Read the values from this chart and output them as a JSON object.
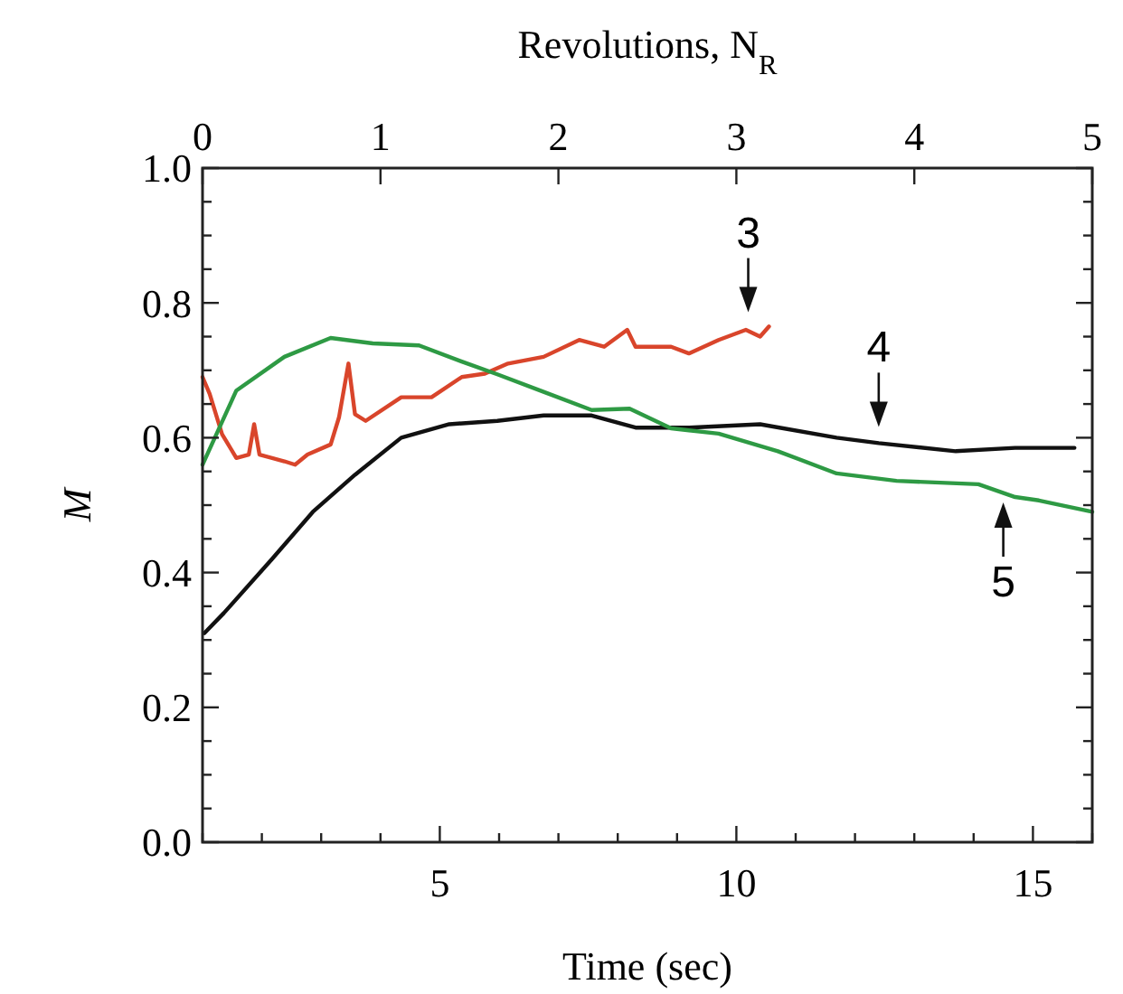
{
  "chart_data": {
    "type": "line",
    "xlabel": "Time (sec)",
    "ylabel": "M",
    "x2label": "Revolutions, N$_{R}$",
    "xlim": [
      1,
      16
    ],
    "xticks": [
      {
        "value": 1,
        "label": null
      },
      {
        "value": 2,
        "label": null
      },
      {
        "value": 3,
        "label": null
      },
      {
        "value": 4,
        "label": null
      },
      5,
      {
        "value": 6,
        "label": null
      },
      {
        "value": 7,
        "label": null
      },
      {
        "value": 8,
        "label": null
      },
      {
        "value": 9,
        "label": null
      },
      10,
      {
        "value": 11,
        "label": null
      },
      {
        "value": 12,
        "label": null
      },
      {
        "value": 13,
        "label": null
      },
      {
        "value": 14,
        "label": null
      },
      15,
      {
        "value": 16,
        "label": null
      }
    ],
    "x2lim": [
      0,
      5
    ],
    "x2ticks": [
      0,
      1,
      2,
      3,
      4,
      5
    ],
    "ylim": [
      0,
      1
    ],
    "yticks": [
      {
        "value": 0,
        "label": "0.0"
      },
      {
        "value": 0.05,
        "label": null
      },
      {
        "value": 0.1,
        "label": null
      },
      {
        "value": 0.15,
        "label": null
      },
      {
        "value": 0.2,
        "label": "0.2"
      },
      {
        "value": 0.25,
        "label": null
      },
      {
        "value": 0.3,
        "label": null
      },
      {
        "value": 0.35,
        "label": null
      },
      {
        "value": 0.4,
        "label": "0.4"
      },
      {
        "value": 0.45,
        "label": null
      },
      {
        "value": 0.5,
        "label": null
      },
      {
        "value": 0.55,
        "label": null
      },
      {
        "value": 0.6,
        "label": "0.6"
      },
      {
        "value": 0.65,
        "label": null
      },
      {
        "value": 0.7,
        "label": null
      },
      {
        "value": 0.75,
        "label": null
      },
      {
        "value": 0.8,
        "label": "0.8"
      },
      {
        "value": 0.85,
        "label": null
      },
      {
        "value": 0.9,
        "label": null
      },
      {
        "value": 0.95,
        "label": null
      },
      {
        "value": 1,
        "label": "1.0"
      }
    ],
    "grid": false,
    "marker": "none",
    "line_style": "solid",
    "series": [
      {
        "color": "#d9452b",
        "x": [
          1.0,
          1.12,
          1.33,
          1.57,
          1.78,
          1.87,
          1.96,
          2.38,
          2.56,
          2.77,
          3.16,
          3.3,
          3.46,
          3.57,
          3.75,
          4.35,
          4.86,
          5.37,
          5.76,
          6.15,
          6.75,
          7.35,
          7.77,
          8.16,
          8.3,
          8.9,
          9.2,
          9.7,
          10.16,
          10.4,
          10.55
        ],
        "values": [
          0.69,
          0.665,
          0.605,
          0.57,
          0.575,
          0.62,
          0.575,
          0.565,
          0.56,
          0.575,
          0.59,
          0.63,
          0.71,
          0.635,
          0.625,
          0.66,
          0.66,
          0.69,
          0.695,
          0.71,
          0.72,
          0.745,
          0.735,
          0.76,
          0.735,
          0.735,
          0.725,
          0.745,
          0.76,
          0.75,
          0.765
        ]
      },
      {
        "color": "#111111",
        "x": [
          1.03,
          1.36,
          2.17,
          2.86,
          3.57,
          4.35,
          5.16,
          5.97,
          6.75,
          7.56,
          8.3,
          9.2,
          10.4,
          11.69,
          12.4,
          13.7,
          14.7,
          15.7
        ],
        "values": [
          0.31,
          0.34,
          0.42,
          0.49,
          0.545,
          0.6,
          0.62,
          0.625,
          0.633,
          0.633,
          0.615,
          0.615,
          0.62,
          0.6,
          0.592,
          0.58,
          0.585,
          0.585
        ]
      },
      {
        "color": "#2e9a44",
        "x": [
          1.0,
          1.57,
          2.38,
          3.16,
          3.87,
          4.65,
          5.37,
          5.97,
          6.75,
          7.56,
          8.2,
          8.9,
          9.7,
          10.7,
          11.69,
          12.7,
          14.08,
          14.7,
          15.1,
          16.0
        ],
        "values": [
          0.56,
          0.67,
          0.72,
          0.748,
          0.74,
          0.737,
          0.713,
          0.694,
          0.668,
          0.641,
          0.643,
          0.614,
          0.606,
          0.58,
          0.547,
          0.536,
          0.531,
          0.512,
          0.507,
          0.49
        ]
      }
    ],
    "annotations": [
      {
        "text": "3",
        "x": 10.2,
        "y": 0.77
      },
      {
        "text": "4",
        "x": 12.4,
        "y": 0.6
      },
      {
        "text": "5",
        "x": 14.5,
        "y": 0.52
      }
    ]
  }
}
